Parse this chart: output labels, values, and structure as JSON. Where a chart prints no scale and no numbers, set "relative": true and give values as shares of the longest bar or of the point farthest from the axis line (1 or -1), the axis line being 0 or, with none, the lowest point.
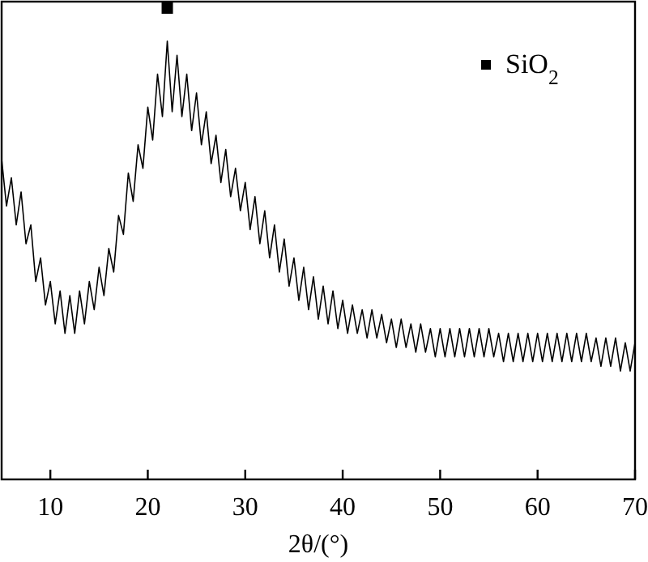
{
  "chart_data": {
    "type": "line",
    "xlabel": "2θ/(°)",
    "xlim": [
      5,
      70
    ],
    "xticks": [
      10,
      20,
      30,
      40,
      50,
      60,
      70
    ],
    "relative": true,
    "legend": "top right",
    "grid": false,
    "x": [
      5,
      5.5,
      6,
      6.5,
      7,
      7.5,
      8,
      8.5,
      9,
      9.5,
      10,
      10.5,
      11,
      11.5,
      12,
      12.5,
      13,
      13.5,
      14,
      14.5,
      15,
      15.5,
      16,
      16.5,
      17,
      17.5,
      18,
      18.5,
      19,
      19.5,
      20,
      20.5,
      21,
      21.5,
      22,
      22.5,
      23,
      23.5,
      24,
      24.5,
      25,
      25.5,
      26,
      26.5,
      27,
      27.5,
      28,
      28.5,
      29,
      29.5,
      30,
      30.5,
      31,
      31.5,
      32,
      32.5,
      33,
      33.5,
      34,
      34.5,
      35,
      35.5,
      36,
      36.5,
      37,
      37.5,
      38,
      38.5,
      39,
      39.5,
      40,
      40.5,
      41,
      41.5,
      42,
      42.5,
      43,
      43.5,
      44,
      44.5,
      45,
      45.5,
      46,
      46.5,
      47,
      47.5,
      48,
      48.5,
      49,
      49.5,
      50,
      50.5,
      51,
      51.5,
      52,
      52.5,
      53,
      53.5,
      54,
      54.5,
      55,
      55.5,
      56,
      56.5,
      57,
      57.5,
      58,
      58.5,
      59,
      59.5,
      60,
      60.5,
      61,
      61.5,
      62,
      62.5,
      63,
      63.5,
      64,
      64.5,
      65,
      65.5,
      66,
      66.5,
      67,
      67.5,
      68,
      68.5,
      69,
      69.5,
      70
    ],
    "series": [
      {
        "color": "#000000",
        "marker": "none",
        "line_style": "solid",
        "values": [
          0.68,
          0.58,
          0.64,
          0.54,
          0.61,
          0.5,
          0.54,
          0.42,
          0.47,
          0.37,
          0.42,
          0.33,
          0.4,
          0.31,
          0.39,
          0.31,
          0.4,
          0.33,
          0.42,
          0.36,
          0.45,
          0.39,
          0.49,
          0.44,
          0.56,
          0.52,
          0.65,
          0.59,
          0.71,
          0.66,
          0.79,
          0.72,
          0.86,
          0.77,
          0.93,
          0.78,
          0.9,
          0.77,
          0.86,
          0.74,
          0.82,
          0.71,
          0.78,
          0.67,
          0.73,
          0.63,
          0.7,
          0.6,
          0.66,
          0.57,
          0.63,
          0.53,
          0.6,
          0.5,
          0.57,
          0.47,
          0.54,
          0.44,
          0.51,
          0.41,
          0.47,
          0.38,
          0.45,
          0.36,
          0.43,
          0.34,
          0.41,
          0.33,
          0.4,
          0.32,
          0.38,
          0.31,
          0.37,
          0.31,
          0.36,
          0.3,
          0.36,
          0.3,
          0.35,
          0.29,
          0.34,
          0.28,
          0.34,
          0.28,
          0.33,
          0.27,
          0.33,
          0.27,
          0.32,
          0.26,
          0.32,
          0.26,
          0.32,
          0.26,
          0.32,
          0.26,
          0.32,
          0.26,
          0.32,
          0.26,
          0.32,
          0.26,
          0.31,
          0.25,
          0.31,
          0.25,
          0.31,
          0.25,
          0.31,
          0.25,
          0.31,
          0.25,
          0.31,
          0.25,
          0.31,
          0.25,
          0.31,
          0.25,
          0.31,
          0.25,
          0.31,
          0.25,
          0.3,
          0.24,
          0.3,
          0.24,
          0.3,
          0.23,
          0.29,
          0.23,
          0.29
        ]
      },
      {
        "type": "scatter",
        "name": "SiO$_{2}$",
        "color": "#000000",
        "marker": "square",
        "x": [
          22
        ],
        "values": [
          1
        ]
      }
    ]
  }
}
